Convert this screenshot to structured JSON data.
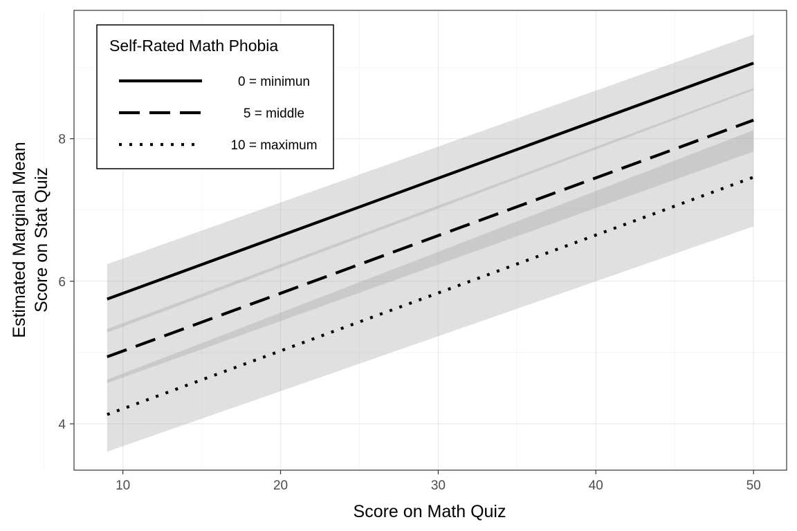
{
  "chart_data": {
    "type": "line",
    "title": "",
    "xlabel": "Score on Math Quiz",
    "ylabel_lines": [
      "Estimated Marginal Mean",
      "Score on Stat Quiz"
    ],
    "xlim": [
      6.9,
      52.1
    ],
    "ylim": [
      3.35,
      9.8
    ],
    "x_ticks": [
      10,
      20,
      30,
      40,
      50
    ],
    "x_minor_ticks": [
      5,
      15,
      25,
      35,
      45
    ],
    "y_ticks": [
      4,
      6,
      8
    ],
    "y_minor_ticks": [
      5,
      7,
      9
    ],
    "grid": true,
    "legend": {
      "title": "Self-Rated Math Phobia",
      "position": "top-left"
    },
    "series": [
      {
        "name": "0 = minimun",
        "linestyle": "solid",
        "x": [
          9,
          50
        ],
        "y": [
          5.75,
          9.06
        ],
        "ci_lower": [
          5.28,
          8.68
        ],
        "ci_upper": [
          6.24,
          9.46
        ]
      },
      {
        "name": "5 = middle",
        "linestyle": "dashed",
        "x": [
          9,
          50
        ],
        "y": [
          4.94,
          8.26
        ],
        "ci_lower": [
          4.57,
          7.82
        ],
        "ci_upper": [
          5.33,
          8.71
        ]
      },
      {
        "name": "10 = maximum",
        "linestyle": "dotted",
        "x": [
          9,
          50
        ],
        "y": [
          4.13,
          7.46
        ],
        "ci_lower": [
          3.61,
          6.77
        ],
        "ci_upper": [
          4.62,
          8.12
        ]
      }
    ],
    "colors": {
      "line": "#000000",
      "ribbon": "#999999",
      "grid_major": "#ebebeb",
      "grid_minor": "#f5f5f5",
      "panel_border": "#333333",
      "tick_text": "#4d4d4d"
    }
  }
}
